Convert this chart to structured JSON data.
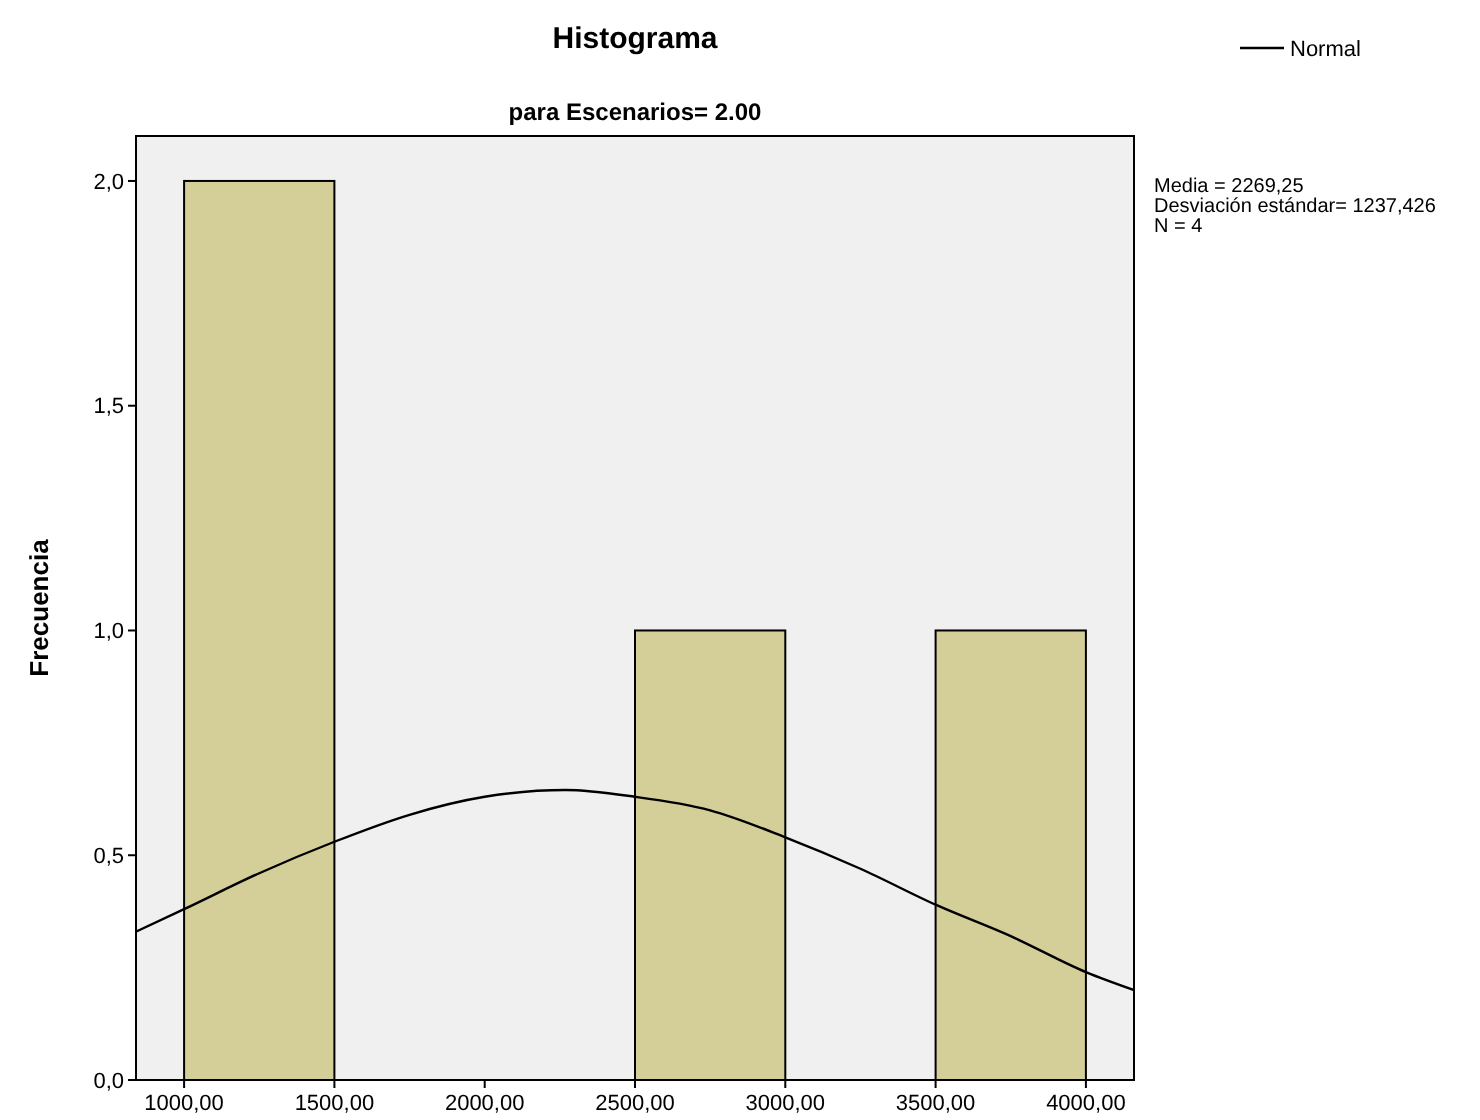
{
  "chart_data": {
    "type": "histogram",
    "title": "Histograma",
    "subtitle": "para Escenarios= 2.00",
    "ylabel": "Frecuencia",
    "bins": [
      1000,
      1500,
      2000,
      2500,
      3000,
      3500,
      4000
    ],
    "values": [
      2,
      0,
      0,
      1,
      0,
      1
    ],
    "color": "#d4cf99",
    "xlim": [
      840,
      4160
    ],
    "ylim": [
      0,
      2.1
    ],
    "xticks": [
      {
        "value": 1000,
        "label": "1000,00"
      },
      {
        "value": 1500,
        "label": "1500,00"
      },
      {
        "value": 2000,
        "label": "2000,00"
      },
      {
        "value": 2500,
        "label": "2500,00"
      },
      {
        "value": 3000,
        "label": "3000,00"
      },
      {
        "value": 3500,
        "label": "3500,00"
      },
      {
        "value": 4000,
        "label": "4000,00"
      }
    ],
    "yticks": [
      {
        "value": 0,
        "label": "0,0"
      },
      {
        "value": 0.5,
        "label": "0,5"
      },
      {
        "value": 1,
        "label": "1,0"
      },
      {
        "value": 1.5,
        "label": "1,5"
      },
      {
        "value": 2,
        "label": "2,0"
      }
    ],
    "series": [
      {
        "name": "Normal",
        "type": "line",
        "color": "#000000",
        "x": [
          840,
          1000,
          1250,
          1500,
          1750,
          2000,
          2269,
          2500,
          2750,
          3000,
          3250,
          3500,
          3750,
          4000,
          4160
        ],
        "values": [
          0.33,
          0.38,
          0.46,
          0.53,
          0.59,
          0.63,
          0.645,
          0.63,
          0.6,
          0.54,
          0.47,
          0.39,
          0.32,
          0.24,
          0.2
        ]
      }
    ],
    "legend": "top right",
    "grid": false,
    "annotations": [
      "Media = 2269,25",
      "Desviación estándar= 1237,426",
      "N = 4"
    ]
  }
}
